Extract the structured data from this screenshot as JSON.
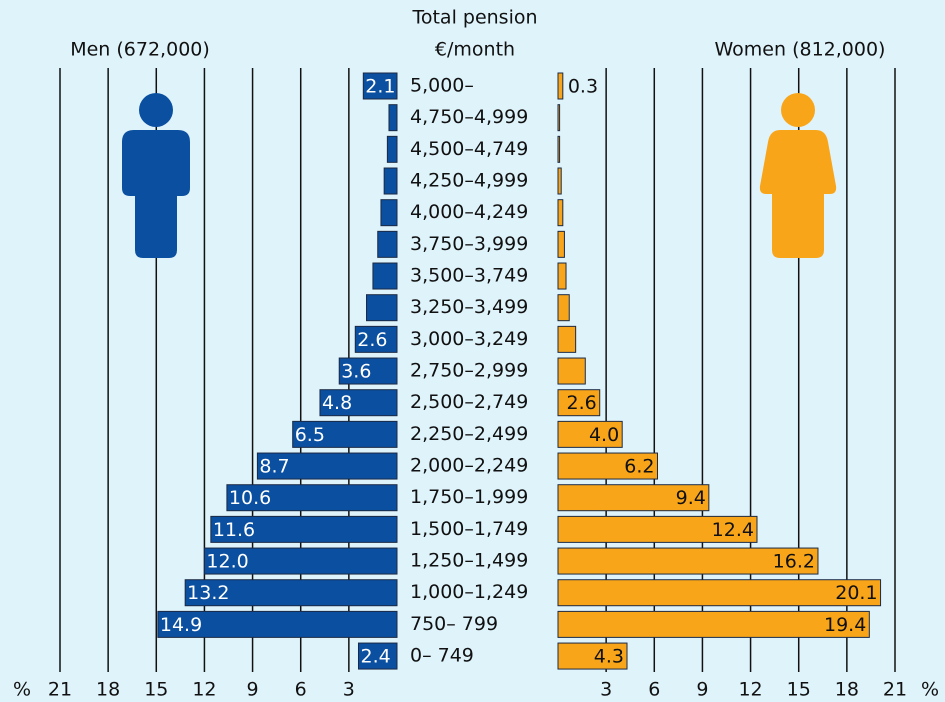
{
  "chart_data": {
    "type": "pyramid",
    "title": "Total pension",
    "subtitle": "€/month",
    "categories": [
      "5,000–",
      "4,750–4,999",
      "4,500–4,749",
      "4,250–4,999",
      "4,000–4,249",
      "3,750–3,999",
      "3,500–3,749",
      "3,250–3,499",
      "3,000–3,249",
      "2,750–2,999",
      "2,500–2,749",
      "2,250–2,499",
      "2,000–2,249",
      "1,750–1,999",
      "1,500–1,749",
      "1,250–1,499",
      "1,000–1,249",
      "750– 799",
      "0– 749"
    ],
    "series": [
      {
        "name": "Men (672,000)",
        "color": "#0a4fa0",
        "values": [
          2.1,
          0.5,
          0.6,
          0.8,
          1.0,
          1.2,
          1.5,
          1.9,
          2.6,
          3.6,
          4.8,
          6.5,
          8.7,
          10.6,
          11.6,
          12.0,
          13.2,
          14.9,
          2.4
        ],
        "value_labels": [
          "2.1",
          null,
          null,
          null,
          null,
          null,
          null,
          null,
          "2.6",
          "3.6",
          "4.8",
          "6.5",
          "8.7",
          "10.6",
          "11.6",
          "12.0",
          "13.2",
          "14.9",
          "2.4"
        ]
      },
      {
        "name": "Women (812,000)",
        "color": "#f9a51a",
        "values": [
          0.3,
          0.1,
          0.1,
          0.2,
          0.3,
          0.4,
          0.5,
          0.7,
          1.1,
          1.7,
          2.6,
          4.0,
          6.2,
          9.4,
          12.4,
          16.2,
          20.1,
          19.4,
          4.3
        ],
        "value_labels": [
          "0.3",
          null,
          null,
          null,
          null,
          null,
          null,
          null,
          null,
          null,
          "2.6",
          "4.0",
          "6.2",
          "9.4",
          "12.4",
          "16.2",
          "20.1",
          "19.4",
          "4.3"
        ]
      }
    ],
    "xlim": [
      0,
      21
    ],
    "xticks": [
      3,
      6,
      9,
      12,
      15,
      18,
      21
    ],
    "axis_label": "%",
    "grid": true
  }
}
